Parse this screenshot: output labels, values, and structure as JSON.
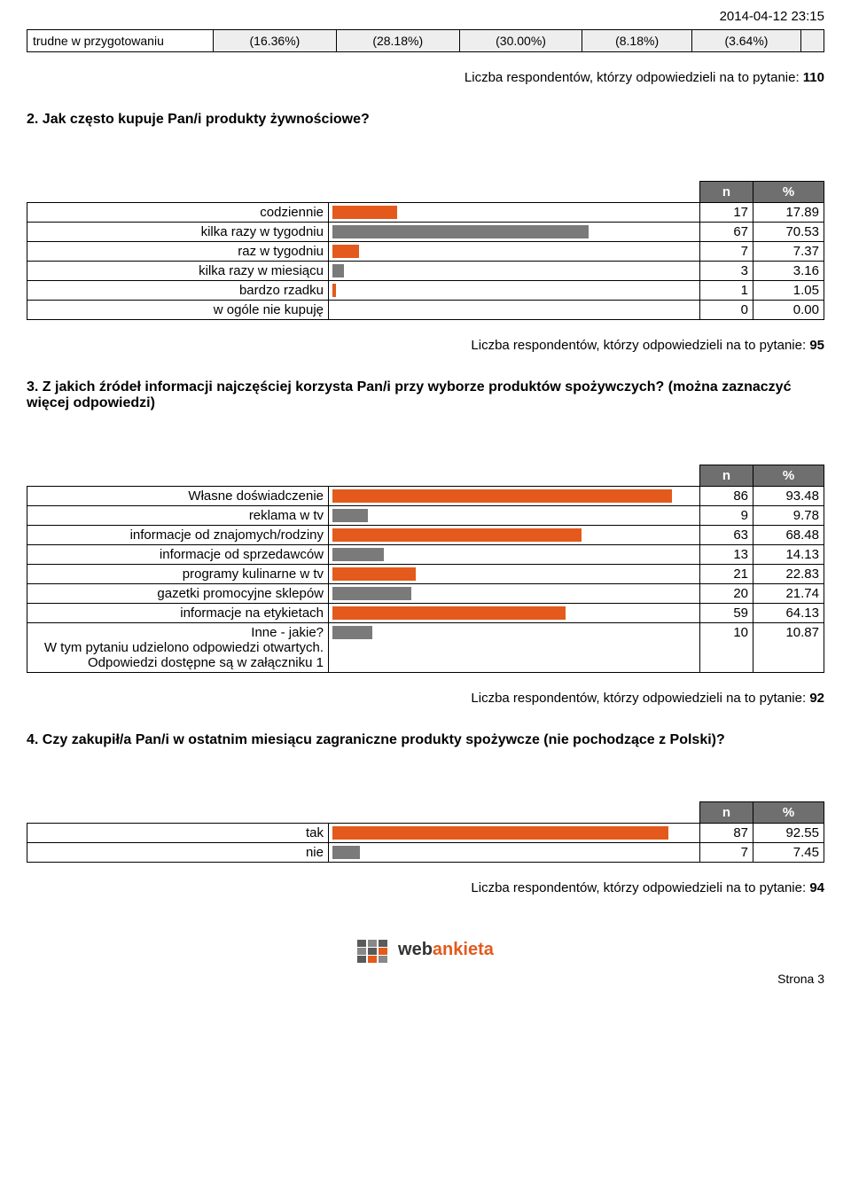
{
  "timestamp": "2014-04-12 23:15",
  "colors": {
    "bar_orange": "#e35a1c",
    "bar_gray": "#7a7a7a",
    "header_bg": "#6f6f6f"
  },
  "toprow": {
    "label": "trudne w przygotowaniu",
    "cells": [
      "(16.36%)",
      "(28.18%)",
      "(30.00%)",
      "(8.18%)",
      "(3.64%)",
      ""
    ]
  },
  "resp_line_template_prefix": "Liczba respondentów, którzy odpowiedzieli na to pytanie: ",
  "resp_count_top": "110",
  "q2": {
    "title": "2. Jak często kupuje Pan/i produkty żywnościowe?",
    "headers": [
      "n",
      "%"
    ],
    "max_pct": 100,
    "rows": [
      {
        "label": "codziennie",
        "n": "17",
        "pct": "17.89",
        "bar": 17.89,
        "color": "#e35a1c"
      },
      {
        "label": "kilka razy w tygodniu",
        "n": "67",
        "pct": "70.53",
        "bar": 70.53,
        "color": "#7a7a7a"
      },
      {
        "label": "raz w tygodniu",
        "n": "7",
        "pct": "7.37",
        "bar": 7.37,
        "color": "#e35a1c"
      },
      {
        "label": "kilka razy w miesiącu",
        "n": "3",
        "pct": "3.16",
        "bar": 3.16,
        "color": "#7a7a7a"
      },
      {
        "label": "bardzo rzadku",
        "n": "1",
        "pct": "1.05",
        "bar": 1.05,
        "color": "#e35a1c"
      },
      {
        "label": "w ogóle nie kupuję",
        "n": "0",
        "pct": "0.00",
        "bar": 0,
        "color": "#7a7a7a"
      }
    ],
    "resp_count": "95"
  },
  "q3": {
    "title": "3. Z jakich źródeł informacji najczęściej korzysta Pan/i przy wyborze produktów spożywczych? (można zaznaczyć więcej odpowiedzi)",
    "headers": [
      "n",
      "%"
    ],
    "max_pct": 100,
    "rows": [
      {
        "label": "Własne doświadczenie",
        "n": "86",
        "pct": "93.48",
        "bar": 93.48,
        "color": "#e35a1c"
      },
      {
        "label": "reklama w tv",
        "n": "9",
        "pct": "9.78",
        "bar": 9.78,
        "color": "#7a7a7a"
      },
      {
        "label": "informacje od znajomych/rodziny",
        "n": "63",
        "pct": "68.48",
        "bar": 68.48,
        "color": "#e35a1c"
      },
      {
        "label": "informacje od sprzedawców",
        "n": "13",
        "pct": "14.13",
        "bar": 14.13,
        "color": "#7a7a7a"
      },
      {
        "label": "programy kulinarne w tv",
        "n": "21",
        "pct": "22.83",
        "bar": 22.83,
        "color": "#e35a1c"
      },
      {
        "label": "gazetki promocyjne sklepów",
        "n": "20",
        "pct": "21.74",
        "bar": 21.74,
        "color": "#7a7a7a"
      },
      {
        "label": "informacje na etykietach",
        "n": "59",
        "pct": "64.13",
        "bar": 64.13,
        "color": "#e35a1c"
      },
      {
        "label": "Inne - jakie?\nW tym pytaniu udzielono odpowiedzi otwartych.\nOdpowiedzi dostępne są w załączniku 1",
        "n": "10",
        "pct": "10.87",
        "bar": 10.87,
        "color": "#7a7a7a"
      }
    ],
    "resp_count": "92"
  },
  "q4": {
    "title": "4. Czy zakupił/a Pan/i w ostatnim miesiącu zagraniczne produkty spożywcze (nie pochodzące z Polski)?",
    "headers": [
      "n",
      "%"
    ],
    "max_pct": 100,
    "rows": [
      {
        "label": "tak",
        "n": "87",
        "pct": "92.55",
        "bar": 92.55,
        "color": "#e35a1c"
      },
      {
        "label": "nie",
        "n": "7",
        "pct": "7.45",
        "bar": 7.45,
        "color": "#7a7a7a"
      }
    ],
    "resp_count": "94"
  },
  "footer": {
    "brand_part1": "web",
    "brand_part2": "ankieta",
    "page": "Strona 3"
  }
}
